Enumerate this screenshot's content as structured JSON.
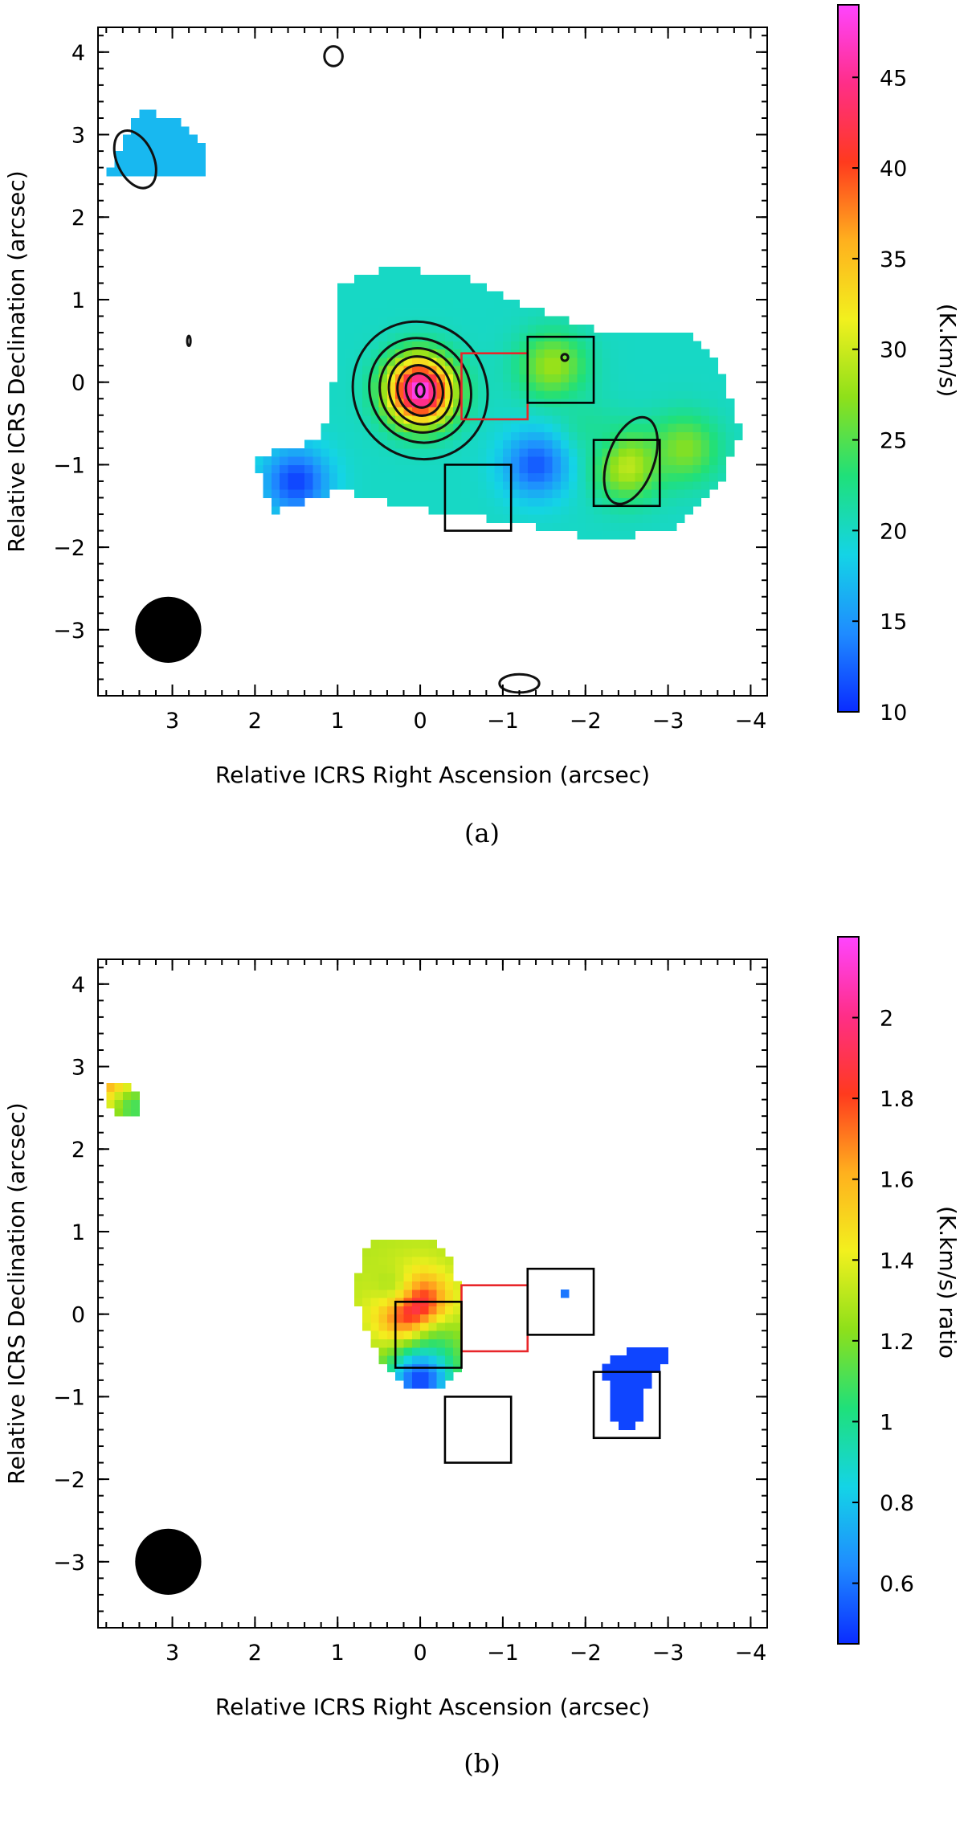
{
  "chart_data": [
    {
      "type": "heatmap",
      "panel": "(a)",
      "xlabel": "Relative ICRS Right Ascension (arcsec)",
      "ylabel": "Relative ICRS Declination (arcsec)",
      "colorbar_label": "(K.km/s)",
      "xlim": [
        3.9,
        -4.2
      ],
      "ylim": [
        -3.8,
        4.3
      ],
      "xticks": [
        3,
        2,
        1,
        0,
        -1,
        -2,
        -3,
        -4
      ],
      "xtick_labels": [
        "3",
        "2",
        "1",
        "0",
        "−1",
        "−2",
        "−3",
        "−4"
      ],
      "yticks": [
        4,
        3,
        2,
        1,
        0,
        -1,
        -2,
        -3
      ],
      "ytick_labels": [
        "4",
        "3",
        "2",
        "1",
        "0",
        "−1",
        "−2",
        "−3"
      ],
      "colorbar": {
        "range": [
          10,
          49
        ],
        "ticks": [
          10,
          15,
          20,
          25,
          30,
          35,
          40,
          45
        ],
        "tick_labels": [
          "10",
          "15",
          "20",
          "25",
          "30",
          "35",
          "40",
          "45"
        ]
      },
      "emission_regions": [
        {
          "name": "main",
          "polygon": [
            [
              1,
              1.2
            ],
            [
              0.4,
              1.4
            ],
            [
              -0.5,
              1.3
            ],
            [
              -1.3,
              0.9
            ],
            [
              -2.3,
              0.6
            ],
            [
              -3.2,
              0.6
            ],
            [
              -3.6,
              0.3
            ],
            [
              -3.9,
              -0.6
            ],
            [
              -3.6,
              -1.3
            ],
            [
              -3.0,
              -1.8
            ],
            [
              -2.1,
              -1.9
            ],
            [
              -1.2,
              -1.7
            ],
            [
              0.2,
              -1.5
            ],
            [
              1.0,
              -1.3
            ],
            [
              1.8,
              -1.6
            ],
            [
              2.0,
              -0.9
            ],
            [
              1.2,
              -0.7
            ],
            [
              1.0,
              0.2
            ]
          ],
          "mean_value": 20
        },
        {
          "name": "north-east",
          "polygon": [
            [
              3.7,
              2.7
            ],
            [
              3.4,
              3.3
            ],
            [
              2.9,
              3.2
            ],
            [
              2.6,
              2.8
            ],
            [
              2.6,
              2.5
            ],
            [
              3.8,
              2.5
            ]
          ],
          "mean_value": 17
        }
      ],
      "peaks": [
        {
          "x": 0.0,
          "y": -0.1,
          "value": 49
        },
        {
          "x": -1.6,
          "y": 0.2,
          "value": 28
        },
        {
          "x": -2.5,
          "y": -1.0,
          "value": 30
        },
        {
          "x": -3.2,
          "y": -0.8,
          "value": 27
        },
        {
          "x": -2.0,
          "y": -0.6,
          "value": 22
        },
        {
          "x": 3.1,
          "y": 2.9,
          "value": 17
        },
        {
          "x": -1.4,
          "y": -1.0,
          "value": 12
        },
        {
          "x": 1.5,
          "y": -1.2,
          "value": 11
        }
      ],
      "contours": [
        {
          "cx": 0.0,
          "cy": -0.1,
          "rx": 0.8,
          "ry": 0.85,
          "rot": -35
        },
        {
          "cx": 0.0,
          "cy": -0.1,
          "rx": 0.6,
          "ry": 0.65,
          "rot": -35
        },
        {
          "cx": 0.0,
          "cy": -0.1,
          "rx": 0.48,
          "ry": 0.52,
          "rot": -30
        },
        {
          "cx": 0.0,
          "cy": -0.1,
          "rx": 0.37,
          "ry": 0.42,
          "rot": -25
        },
        {
          "cx": 0.0,
          "cy": -0.1,
          "rx": 0.27,
          "ry": 0.31,
          "rot": -20
        },
        {
          "cx": 0.0,
          "cy": -0.1,
          "rx": 0.17,
          "ry": 0.21,
          "rot": -15
        },
        {
          "cx": 0.0,
          "cy": -0.1,
          "rx": 0.05,
          "ry": 0.08,
          "rot": 0
        },
        {
          "cx": -2.55,
          "cy": -0.95,
          "rx": 0.28,
          "ry": 0.55,
          "rot": 20
        },
        {
          "cx": 3.45,
          "cy": 2.7,
          "rx": 0.22,
          "ry": 0.37,
          "rot": -25
        },
        {
          "cx": 1.05,
          "cy": 3.95,
          "rx": 0.11,
          "ry": 0.12,
          "rot": 0
        },
        {
          "cx": -1.2,
          "cy": -3.65,
          "rx": 0.24,
          "ry": 0.11,
          "rot": 0
        },
        {
          "cx": 2.8,
          "cy": 0.5,
          "rx": 0.02,
          "ry": 0.06,
          "rot": 0
        },
        {
          "cx": -1.75,
          "cy": 0.3,
          "rx": 0.04,
          "ry": 0.04,
          "rot": 0
        }
      ],
      "boxes": [
        {
          "x0": -0.5,
          "x1": -1.3,
          "y0": -0.45,
          "y1": 0.35,
          "color": "#e8262a"
        },
        {
          "x0": -1.3,
          "x1": -2.1,
          "y0": -0.25,
          "y1": 0.55,
          "color": "#000000"
        },
        {
          "x0": -2.1,
          "x1": -2.9,
          "y0": -1.5,
          "y1": -0.7,
          "color": "#000000"
        },
        {
          "x0": -0.3,
          "x1": -1.1,
          "y0": -1.8,
          "y1": -1.0,
          "color": "#000000"
        }
      ],
      "beam": {
        "x": 3.05,
        "y": -3.0,
        "r": 0.4
      }
    },
    {
      "type": "heatmap",
      "panel": "(b)",
      "xlabel": "Relative ICRS Right Ascension (arcsec)",
      "ylabel": "Relative ICRS Declination (arcsec)",
      "colorbar_label": "(K.km/s) ratio",
      "xlim": [
        3.9,
        -4.2
      ],
      "ylim": [
        -3.8,
        4.3
      ],
      "xticks": [
        3,
        2,
        1,
        0,
        -1,
        -2,
        -3,
        -4
      ],
      "xtick_labels": [
        "3",
        "2",
        "1",
        "0",
        "−1",
        "−2",
        "−3",
        "−4"
      ],
      "yticks": [
        4,
        3,
        2,
        1,
        0,
        -1,
        -2,
        -3
      ],
      "ytick_labels": [
        "4",
        "3",
        "2",
        "1",
        "0",
        "−1",
        "−2",
        "−3"
      ],
      "colorbar": {
        "range": [
          0.45,
          2.2
        ],
        "ticks": [
          0.6,
          0.8,
          1,
          1.2,
          1.4,
          1.6,
          1.8,
          2
        ],
        "tick_labels": [
          "0.6",
          "0.8",
          "1",
          "1.2",
          "1.4",
          "1.6",
          "1.8",
          "2"
        ]
      },
      "emission_regions": [
        {
          "name": "main",
          "polygon": [
            [
              0.7,
              0.8
            ],
            [
              0.5,
              0.95
            ],
            [
              0.0,
              0.95
            ],
            [
              -0.4,
              0.7
            ],
            [
              -0.5,
              0.2
            ],
            [
              -0.5,
              -0.6
            ],
            [
              -0.2,
              -0.9
            ],
            [
              0.2,
              -0.9
            ],
            [
              0.5,
              -0.5
            ],
            [
              0.8,
              0.2
            ]
          ],
          "mean_value": 1.3
        },
        {
          "name": "south-west",
          "polygon": [
            [
              -2.2,
              -0.6
            ],
            [
              -2.6,
              -0.4
            ],
            [
              -3.0,
              -0.4
            ],
            [
              -3.0,
              -0.6
            ],
            [
              -2.8,
              -0.7
            ],
            [
              -2.7,
              -1.2
            ],
            [
              -2.5,
              -1.45
            ],
            [
              -2.3,
              -1.3
            ],
            [
              -2.3,
              -0.9
            ]
          ],
          "mean_value": 0.5
        },
        {
          "name": "north-east",
          "polygon": [
            [
              3.8,
              2.8
            ],
            [
              3.6,
              2.85
            ],
            [
              3.4,
              2.7
            ],
            [
              3.4,
              2.35
            ],
            [
              3.6,
              2.4
            ],
            [
              3.85,
              2.5
            ]
          ],
          "mean_value": 1.4
        },
        {
          "name": "spot",
          "polygon": [
            [
              -1.75,
              0.35
            ],
            [
              -1.85,
              0.35
            ],
            [
              -1.85,
              0.25
            ],
            [
              -1.75,
              0.25
            ]
          ],
          "mean_value": 0.6
        }
      ],
      "peaks": [
        {
          "x": 0.1,
          "y": 0.1,
          "value": 2.2
        },
        {
          "x": 0.4,
          "y": 0.4,
          "value": 1.3
        },
        {
          "x": -0.3,
          "y": -0.4,
          "value": 1.2
        },
        {
          "x": 0.0,
          "y": -0.8,
          "value": 0.5
        },
        {
          "x": 3.65,
          "y": 2.8,
          "value": 1.9
        },
        {
          "x": 3.45,
          "y": 2.5,
          "value": 1.1
        },
        {
          "x": -2.6,
          "y": -1.0,
          "value": 0.5
        },
        {
          "x": -1.8,
          "y": 0.3,
          "value": 0.6
        }
      ],
      "contours": [],
      "boxes": [
        {
          "x0": -0.5,
          "x1": -1.3,
          "y0": -0.45,
          "y1": 0.35,
          "color": "#e8262a"
        },
        {
          "x0": -1.3,
          "x1": -2.1,
          "y0": -0.25,
          "y1": 0.55,
          "color": "#000000"
        },
        {
          "x0": -2.1,
          "x1": -2.9,
          "y0": -1.5,
          "y1": -0.7,
          "color": "#000000"
        },
        {
          "x0": -0.3,
          "x1": -1.1,
          "y0": -1.8,
          "y1": -1.0,
          "color": "#000000"
        },
        {
          "x0": 0.3,
          "x1": -0.5,
          "y0": -0.65,
          "y1": 0.15,
          "color": "#000000"
        }
      ],
      "beam": {
        "x": 3.05,
        "y": -3.0,
        "r": 0.4
      }
    }
  ],
  "captions": [
    "(a)",
    "(b)"
  ],
  "colormap": [
    "#0a2cff",
    "#1f8cff",
    "#14d4e6",
    "#1fe07a",
    "#8ee01a",
    "#f2f01e",
    "#ffb01e",
    "#ff3a1e",
    "#ff2e88",
    "#ff44ff"
  ]
}
